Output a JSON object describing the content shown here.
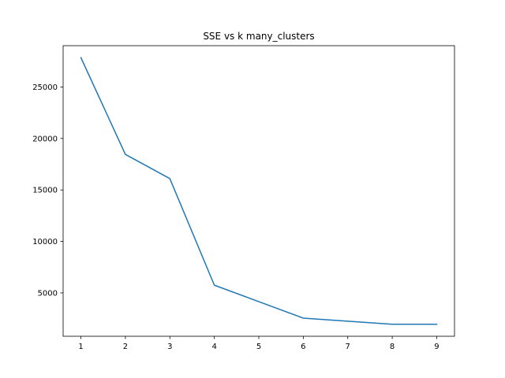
{
  "chart_data": {
    "type": "line",
    "title": "SSE vs k many_clusters",
    "xlabel": "",
    "ylabel": "",
    "x": [
      1,
      2,
      3,
      4,
      5,
      6,
      7,
      8,
      9
    ],
    "series": [
      {
        "values": [
          27850,
          18450,
          16100,
          5750,
          4150,
          2550,
          2250,
          1950,
          1950
        ]
      }
    ],
    "xlim": [
      0.6,
      9.4
    ],
    "ylim": [
      787.5,
      29012.5
    ],
    "xticks": [
      1,
      2,
      3,
      4,
      5,
      6,
      7,
      8,
      9
    ],
    "yticks": [
      5000,
      10000,
      15000,
      20000,
      25000
    ],
    "grid": false,
    "legend": "none",
    "colors": {
      "line": "#1f77b4",
      "axes": "#000000",
      "background": "#ffffff"
    }
  }
}
